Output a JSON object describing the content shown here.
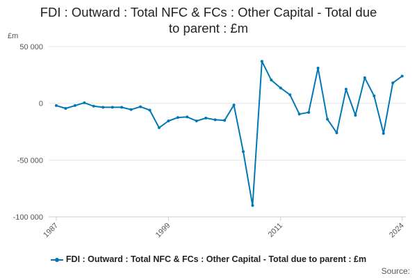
{
  "title_lines": [
    "FDI : Outward : Total NFC & FCs : Other Capital - Total due",
    "to parent : £m"
  ],
  "source_label": "Source:",
  "colors": {
    "series": "#0077b6",
    "grid": "#e6e6e6",
    "axis": "#cccccc"
  },
  "chart_data": {
    "type": "line",
    "title": "FDI : Outward : Total NFC & FCs : Other Capital - Total due to parent : £m",
    "ylabel": "£m",
    "xlabel": "",
    "ylim": [
      -100000,
      50000
    ],
    "xlim": [
      1987,
      2024
    ],
    "y_ticks": [
      50000,
      0,
      -50000,
      -100000
    ],
    "y_tick_labels": [
      "50 000",
      "0",
      "-50 000",
      "-100 000"
    ],
    "x_ticks": [
      1987,
      1999,
      2011,
      2024
    ],
    "x_tick_labels": [
      "1987",
      "1999",
      "2011",
      "2024"
    ],
    "grid": "horizontal",
    "legend_position": "bottom",
    "series": [
      {
        "name": "FDI : Outward : Total NFC & FCs : Other Capital - Total due to parent : £m",
        "x": [
          1987,
          1988,
          1989,
          1990,
          1991,
          1992,
          1993,
          1994,
          1995,
          1996,
          1997,
          1998,
          1999,
          2000,
          2001,
          2002,
          2003,
          2004,
          2005,
          2006,
          2007,
          2008,
          2009,
          2010,
          2011,
          2012,
          2013,
          2014,
          2015,
          2016,
          2017,
          2018,
          2019,
          2020,
          2021,
          2022,
          2023,
          2024
        ],
        "values": [
          -2000,
          -4500,
          -2000,
          500,
          -2500,
          -3500,
          -3500,
          -3500,
          -5500,
          -3000,
          -6000,
          -21500,
          -15500,
          -12500,
          -12000,
          -15500,
          -13000,
          -14500,
          -15000,
          -1500,
          -42500,
          -90000,
          37000,
          20500,
          13500,
          7500,
          -9500,
          -8000,
          31000,
          -14000,
          -26000,
          12500,
          -10500,
          22500,
          6500,
          -26500,
          18000,
          24000
        ]
      }
    ]
  }
}
